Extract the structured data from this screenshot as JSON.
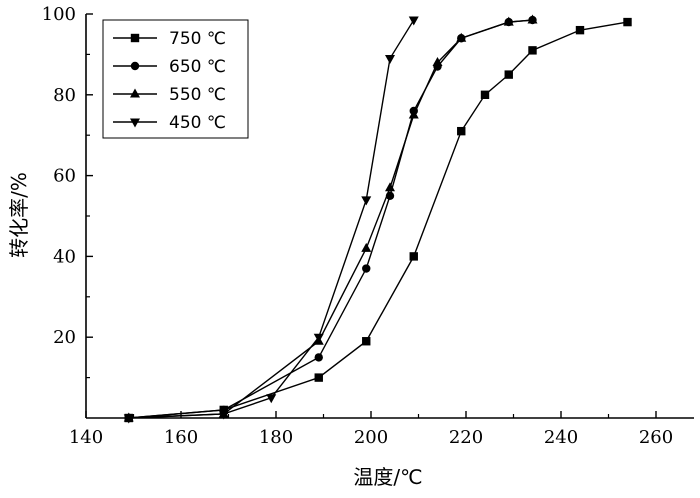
{
  "chart_data": {
    "type": "line",
    "xlabel": "温度/℃",
    "ylabel": "转化率/%",
    "xlim": [
      140,
      268
    ],
    "ylim": [
      0,
      100
    ],
    "x_ticks": [
      140,
      160,
      180,
      200,
      220,
      240,
      260
    ],
    "y_ticks": [
      20,
      40,
      60,
      80,
      100
    ],
    "grid": false,
    "legend_position": "top-left",
    "series": [
      {
        "name": "750 ℃",
        "marker": "square",
        "x": [
          149,
          169,
          189,
          199,
          209,
          219,
          224,
          229,
          234,
          244,
          254
        ],
        "y": [
          0,
          2,
          10,
          19,
          40,
          71,
          80,
          85,
          91,
          96,
          98
        ]
      },
      {
        "name": "650 ℃",
        "marker": "circle",
        "x": [
          149,
          169,
          189,
          199,
          204,
          209,
          214,
          219,
          229,
          234
        ],
        "y": [
          0,
          2,
          15,
          37,
          55,
          76,
          87,
          94,
          98,
          98.5
        ]
      },
      {
        "name": "550 ℃",
        "marker": "triangle-up",
        "x": [
          149,
          169,
          189,
          199,
          204,
          209,
          214,
          219,
          229,
          234
        ],
        "y": [
          0,
          1,
          19,
          42,
          57,
          75,
          88,
          94,
          98,
          98.5
        ]
      },
      {
        "name": "450 ℃",
        "marker": "triangle-down",
        "x": [
          149,
          169,
          179,
          189,
          199,
          204,
          209
        ],
        "y": [
          0,
          1,
          5,
          20,
          54,
          89,
          98.5
        ]
      }
    ]
  }
}
